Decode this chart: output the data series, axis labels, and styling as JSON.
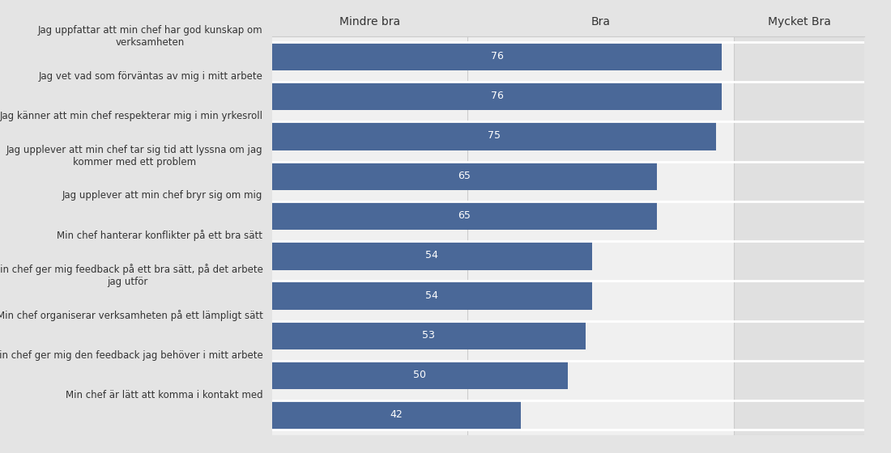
{
  "categories": [
    "Jag uppfattar att min chef har god kunskap om\nverksamheten",
    "Jag vet vad som förväntas av mig i mitt arbete",
    "Jag känner att min chef respekterar mig i min yrkesroll",
    "Jag upplever att min chef tar sig tid att lyssna om jag\nkommer med ett problem",
    "Jag upplever att min chef bryr sig om mig",
    "Min chef hanterar konflikter på ett bra sätt",
    "Min chef ger mig feedback på ett bra sätt, på det arbete\njag utför",
    "Min chef organiserar verksamheten på ett lämpligt sätt",
    "Min chef ger mig den feedback jag behöver i mitt arbete",
    "Min chef är lätt att komma i kontakt med"
  ],
  "values": [
    76,
    76,
    75,
    65,
    65,
    54,
    54,
    53,
    50,
    42
  ],
  "bar_color": "#4a6898",
  "label_color": "#ffffff",
  "bg_color": "#e4e4e4",
  "bar_area_bg": "#f0f0f0",
  "right_area_bg": "#e0e0e0",
  "header_labels": [
    "Mindre bra",
    "Bra",
    "Mycket Bra"
  ],
  "xmax": 100,
  "bra_line": 33,
  "mycket_bra_line": 78,
  "label_fontsize": 8.5,
  "value_fontsize": 9,
  "header_fontsize": 10,
  "separator_color": "#cccccc",
  "divider_color": "#cccccc"
}
